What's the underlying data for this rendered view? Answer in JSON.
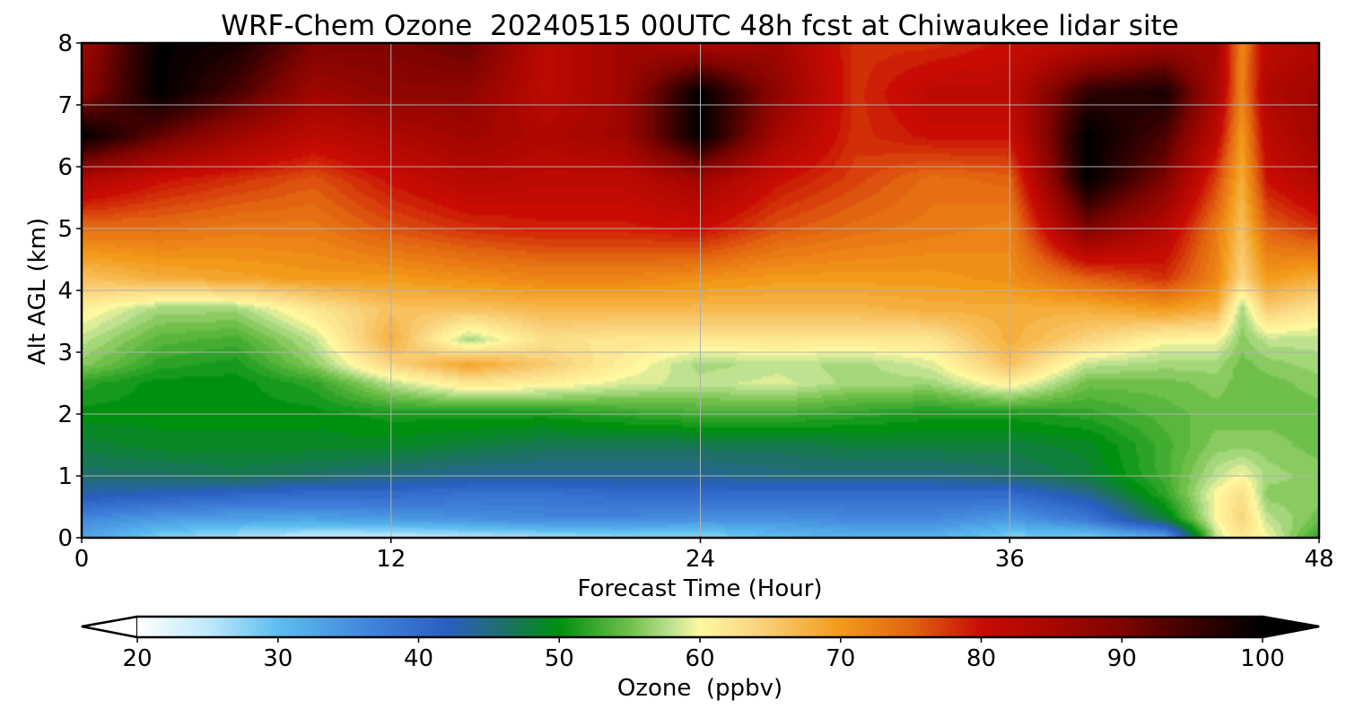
{
  "chart_data": {
    "type": "heatmap",
    "title": "WRF-Chem Ozone  20240515 00UTC 48h fcst at Chiwaukee lidar site",
    "xlabel": "Forecast Time (Hour)",
    "ylabel": "Alt AGL (km)",
    "xlim": [
      0,
      48
    ],
    "ylim": [
      0,
      8
    ],
    "xticks": [
      0,
      12,
      24,
      36,
      48
    ],
    "yticks": [
      0,
      1,
      2,
      3,
      4,
      5,
      6,
      7,
      8
    ],
    "grid": true,
    "x_hours": [
      0,
      3,
      6,
      9,
      12,
      15,
      18,
      21,
      24,
      27,
      30,
      33,
      36,
      39,
      42,
      44,
      45,
      46,
      48
    ],
    "z_km": [
      0,
      0.3,
      0.7,
      1.0,
      1.5,
      2.0,
      2.5,
      2.8,
      3.2,
      3.7,
      4.2,
      5.0,
      5.8,
      6.5,
      7.2,
      8.0
    ],
    "ozone_ppbv": [
      [
        33,
        28,
        26,
        24,
        24,
        25,
        26,
        27,
        27,
        30,
        31,
        31,
        28,
        28,
        32,
        58,
        62,
        60,
        52
      ],
      [
        36,
        34,
        33,
        33,
        34,
        35,
        36,
        36,
        35,
        35,
        36,
        36,
        34,
        38,
        48,
        60,
        64,
        58,
        55
      ],
      [
        43,
        42,
        41,
        40,
        40,
        39,
        39,
        40,
        40,
        40,
        40,
        40,
        40,
        44,
        52,
        60,
        63,
        56,
        56
      ],
      [
        46,
        46,
        47,
        46,
        45,
        44,
        44,
        44,
        44,
        45,
        45,
        45,
        46,
        48,
        53,
        58,
        60,
        57,
        56
      ],
      [
        48,
        49,
        49,
        49,
        49,
        48,
        47,
        47,
        47,
        47,
        48,
        48,
        48,
        49,
        53,
        56,
        56,
        56,
        55
      ],
      [
        50,
        50,
        50,
        50,
        51,
        51,
        51,
        52,
        53,
        53,
        52,
        51,
        51,
        52,
        54,
        55,
        55,
        55,
        55
      ],
      [
        52,
        50,
        50,
        52,
        58,
        62,
        61,
        59,
        58,
        59,
        57,
        57,
        61,
        55,
        55,
        56,
        55,
        55,
        56
      ],
      [
        56,
        52,
        51,
        56,
        64,
        69,
        65,
        61,
        57,
        58,
        57,
        59,
        66,
        58,
        57,
        57,
        55,
        56,
        57
      ],
      [
        58,
        54,
        53,
        58,
        68,
        57,
        63,
        62,
        62,
        62,
        62,
        62,
        68,
        64,
        60,
        60,
        56,
        58,
        58
      ],
      [
        61,
        57,
        57,
        62,
        66,
        66,
        67,
        67,
        67,
        67,
        67,
        68,
        68,
        68,
        70,
        68,
        57,
        65,
        62
      ],
      [
        66,
        68,
        69,
        70,
        70,
        71,
        72,
        72,
        71,
        70,
        70,
        70,
        71,
        75,
        78,
        72,
        64,
        70,
        68
      ],
      [
        74,
        74,
        73,
        73,
        76,
        78,
        79,
        79,
        80,
        76,
        74,
        73,
        72,
        90,
        83,
        73,
        66,
        75,
        78
      ],
      [
        84,
        80,
        78,
        76,
        80,
        83,
        82,
        82,
        86,
        80,
        77,
        74,
        75,
        100,
        90,
        77,
        68,
        80,
        84
      ],
      [
        100,
        92,
        86,
        82,
        84,
        86,
        84,
        86,
        100,
        85,
        78,
        80,
        80,
        100,
        94,
        82,
        70,
        82,
        86
      ],
      [
        88,
        100,
        94,
        86,
        88,
        88,
        82,
        86,
        100,
        88,
        78,
        82,
        82,
        96,
        98,
        85,
        72,
        84,
        86
      ],
      [
        86,
        100,
        98,
        90,
        90,
        92,
        82,
        86,
        84,
        86,
        78,
        78,
        80,
        82,
        86,
        86,
        72,
        82,
        84
      ]
    ],
    "colorbar": {
      "label": "Ozone  (ppbv)",
      "min": 20,
      "max": 100,
      "ticks": [
        20,
        30,
        40,
        50,
        60,
        70,
        80,
        90,
        100
      ],
      "extend": "both",
      "stops": [
        {
          "v": 20,
          "c": "#ffffff"
        },
        {
          "v": 25,
          "c": "#bfe9fb"
        },
        {
          "v": 30,
          "c": "#5cbef0"
        },
        {
          "v": 37,
          "c": "#3f80da"
        },
        {
          "v": 42,
          "c": "#2a5fc2"
        },
        {
          "v": 46,
          "c": "#1f6f6a"
        },
        {
          "v": 50,
          "c": "#00900f"
        },
        {
          "v": 55,
          "c": "#6fc04a"
        },
        {
          "v": 58,
          "c": "#bfe290"
        },
        {
          "v": 60,
          "c": "#fff8a0"
        },
        {
          "v": 64,
          "c": "#fad580"
        },
        {
          "v": 70,
          "c": "#f39a1a"
        },
        {
          "v": 75,
          "c": "#e26410"
        },
        {
          "v": 80,
          "c": "#c80c04"
        },
        {
          "v": 85,
          "c": "#a80700"
        },
        {
          "v": 90,
          "c": "#7f0400"
        },
        {
          "v": 95,
          "c": "#3a0100"
        },
        {
          "v": 100,
          "c": "#000000"
        }
      ]
    }
  }
}
